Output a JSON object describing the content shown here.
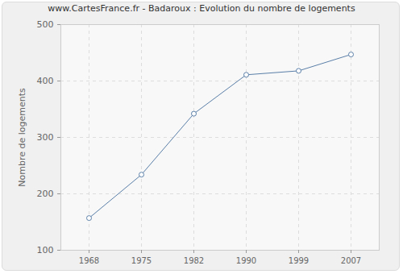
{
  "chart_data": {
    "type": "line",
    "title": "www.CartesFrance.fr - Badaroux : Evolution du nombre de logements",
    "y_label": "Nombre de logements",
    "categories": [
      "1968",
      "1975",
      "1982",
      "1990",
      "1999",
      "2007"
    ],
    "values": [
      157,
      234,
      342,
      411,
      418,
      447
    ],
    "color": "#5a7fa8",
    "marker": "circle",
    "line_style": "solid",
    "ylim": [
      100,
      500
    ],
    "yticks": [
      100,
      200,
      300,
      400,
      500
    ],
    "grid": true
  }
}
